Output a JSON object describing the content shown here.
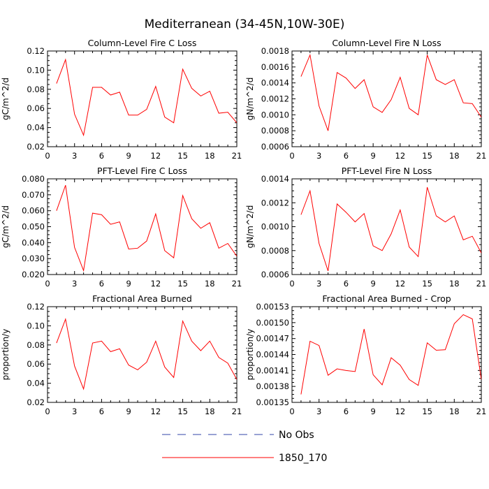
{
  "title": "Mediterranean (34-45N,10W-30E)",
  "legend": {
    "entries": [
      {
        "name": "No Obs",
        "color": "#3344aa",
        "style": "dashed"
      },
      {
        "name": "1850_170",
        "color": "#ff0000",
        "style": "solid"
      }
    ]
  },
  "colors": {
    "series": "#ff0000",
    "obs": "#3344aa",
    "axis": "#000000"
  },
  "chart_data": [
    {
      "type": "line",
      "title": "Column-Level Fire C Loss",
      "ylabel": "gC/m^2/d",
      "xlim": [
        0,
        21
      ],
      "ylim": [
        0.02,
        0.12
      ],
      "xticks": [
        0,
        3,
        6,
        9,
        12,
        15,
        18,
        21
      ],
      "yticks": [
        "0.02",
        "0.04",
        "0.06",
        "0.08",
        "0.10",
        "0.12"
      ],
      "x": [
        1,
        2,
        3,
        4,
        5,
        6,
        7,
        8,
        9,
        10,
        11,
        12,
        13,
        14,
        15,
        16,
        17,
        18,
        19,
        20,
        21
      ],
      "series": [
        {
          "name": "1850_170",
          "values": [
            0.086,
            0.111,
            0.054,
            0.032,
            0.082,
            0.082,
            0.074,
            0.077,
            0.053,
            0.053,
            0.059,
            0.083,
            0.051,
            0.045,
            0.101,
            0.081,
            0.073,
            0.078,
            0.055,
            0.056,
            0.045
          ]
        }
      ]
    },
    {
      "type": "line",
      "title": "Column-Level Fire N Loss",
      "ylabel": "gN/m^2/d",
      "xlim": [
        0,
        21
      ],
      "ylim": [
        0.0006,
        0.0018
      ],
      "xticks": [
        0,
        3,
        6,
        9,
        12,
        15,
        18,
        21
      ],
      "yticks": [
        "0.0006",
        "0.0008",
        "0.0010",
        "0.0012",
        "0.0014",
        "0.0016",
        "0.0018"
      ],
      "x": [
        1,
        2,
        3,
        4,
        5,
        6,
        7,
        8,
        9,
        10,
        11,
        12,
        13,
        14,
        15,
        16,
        17,
        18,
        19,
        20,
        21
      ],
      "series": [
        {
          "name": "1850_170",
          "values": [
            0.00148,
            0.00175,
            0.00111,
            0.0008,
            0.00153,
            0.00146,
            0.00133,
            0.00144,
            0.0011,
            0.00103,
            0.00119,
            0.00147,
            0.00108,
            0.001,
            0.00175,
            0.00144,
            0.00138,
            0.00144,
            0.00115,
            0.00114,
            0.00097
          ]
        }
      ]
    },
    {
      "type": "line",
      "title": "PFT-Level Fire C Loss",
      "ylabel": "gC/m^2/d",
      "xlim": [
        0,
        21
      ],
      "ylim": [
        0.02,
        0.08
      ],
      "xticks": [
        0,
        3,
        6,
        9,
        12,
        15,
        18,
        21
      ],
      "yticks": [
        "0.020",
        "0.030",
        "0.040",
        "0.050",
        "0.060",
        "0.070",
        "0.080"
      ],
      "x": [
        1,
        2,
        3,
        4,
        5,
        6,
        7,
        8,
        9,
        10,
        11,
        12,
        13,
        14,
        15,
        16,
        17,
        18,
        19,
        20,
        21
      ],
      "series": [
        {
          "name": "1850_170",
          "values": [
            0.06,
            0.076,
            0.037,
            0.0225,
            0.0585,
            0.0575,
            0.0515,
            0.053,
            0.036,
            0.0365,
            0.041,
            0.058,
            0.035,
            0.0305,
            0.0695,
            0.055,
            0.049,
            0.0525,
            0.0365,
            0.0395,
            0.0315
          ]
        }
      ]
    },
    {
      "type": "line",
      "title": "PFT-Level Fire N Loss",
      "ylabel": "gN/m^2/d",
      "xlim": [
        0,
        21
      ],
      "ylim": [
        0.0006,
        0.0014
      ],
      "xticks": [
        0,
        3,
        6,
        9,
        12,
        15,
        18,
        21
      ],
      "yticks": [
        "0.0006",
        "0.0008",
        "0.0010",
        "0.0012",
        "0.0014"
      ],
      "x": [
        1,
        2,
        3,
        4,
        5,
        6,
        7,
        8,
        9,
        10,
        11,
        12,
        13,
        14,
        15,
        16,
        17,
        18,
        19,
        20,
        21
      ],
      "series": [
        {
          "name": "1850_170",
          "values": [
            0.0011,
            0.0013,
            0.00086,
            0.00063,
            0.00119,
            0.00112,
            0.00104,
            0.00111,
            0.00084,
            0.0008,
            0.00094,
            0.00114,
            0.00083,
            0.00075,
            0.00133,
            0.00109,
            0.00104,
            0.00109,
            0.00089,
            0.00092,
            0.00078
          ]
        }
      ]
    },
    {
      "type": "line",
      "title": "Fractional Area Burned",
      "ylabel": "proportion/y",
      "xlim": [
        0,
        21
      ],
      "ylim": [
        0.02,
        0.12
      ],
      "xticks": [
        0,
        3,
        6,
        9,
        12,
        15,
        18,
        21
      ],
      "yticks": [
        "0.02",
        "0.04",
        "0.06",
        "0.08",
        "0.10",
        "0.12"
      ],
      "x": [
        1,
        2,
        3,
        4,
        5,
        6,
        7,
        8,
        9,
        10,
        11,
        12,
        13,
        14,
        15,
        16,
        17,
        18,
        19,
        20,
        21
      ],
      "series": [
        {
          "name": "1850_170",
          "values": [
            0.082,
            0.107,
            0.058,
            0.034,
            0.082,
            0.084,
            0.073,
            0.076,
            0.059,
            0.054,
            0.062,
            0.084,
            0.057,
            0.046,
            0.105,
            0.084,
            0.074,
            0.084,
            0.067,
            0.061,
            0.044
          ]
        }
      ]
    },
    {
      "type": "line",
      "title": "Fractional Area Burned - Crop",
      "ylabel": "proportion/y",
      "xlim": [
        0,
        21
      ],
      "ylim": [
        0.00135,
        0.00153
      ],
      "xticks": [
        0,
        3,
        6,
        9,
        12,
        15,
        18,
        21
      ],
      "yticks": [
        "0.00135",
        "0.00138",
        "0.00141",
        "0.00144",
        "0.00147",
        "0.00150",
        "0.00153"
      ],
      "x": [
        1,
        2,
        3,
        4,
        5,
        6,
        7,
        8,
        9,
        10,
        11,
        12,
        13,
        14,
        15,
        16,
        17,
        18,
        19,
        20,
        21
      ],
      "series": [
        {
          "name": "1850_170",
          "values": [
            0.001365,
            0.001465,
            0.001457,
            0.001401,
            0.001413,
            0.00141,
            0.001408,
            0.001488,
            0.001402,
            0.001383,
            0.001434,
            0.00142,
            0.001393,
            0.001382,
            0.001462,
            0.001448,
            0.001449,
            0.001498,
            0.001515,
            0.001507,
            0.001393
          ]
        }
      ]
    }
  ]
}
